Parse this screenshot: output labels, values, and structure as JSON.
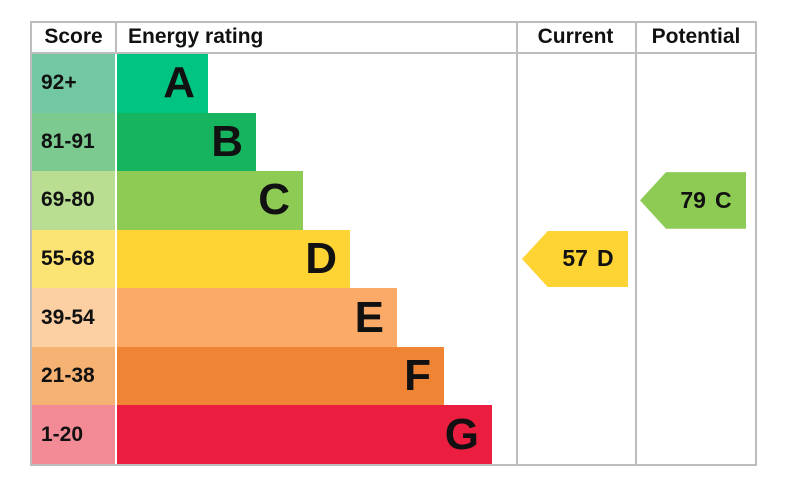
{
  "header": {
    "score": "Score",
    "energy_rating": "Energy rating",
    "current": "Current",
    "potential": "Potential"
  },
  "bands": [
    {
      "score_range": "92+",
      "letter": "A",
      "bar_color": "#00c482",
      "score_cell_color": "#73c8a3"
    },
    {
      "score_range": "81-91",
      "letter": "B",
      "bar_color": "#17b45f",
      "score_cell_color": "#7cca8f"
    },
    {
      "score_range": "69-80",
      "letter": "C",
      "bar_color": "#8dcb55",
      "score_cell_color": "#b9de91"
    },
    {
      "score_range": "55-68",
      "letter": "D",
      "bar_color": "#fed334",
      "score_cell_color": "#fbe374"
    },
    {
      "score_range": "39-54",
      "letter": "E",
      "bar_color": "#fcaa68",
      "score_cell_color": "#fdd0a3"
    },
    {
      "score_range": "21-38",
      "letter": "F",
      "bar_color": "#ee8434",
      "score_cell_color": "#f5b273"
    },
    {
      "score_range": "1-20",
      "letter": "G",
      "bar_color": "#eb1e3f",
      "score_cell_color": "#f28b95"
    }
  ],
  "current": {
    "value": "57",
    "letter": "D",
    "color": "#fed334"
  },
  "potential": {
    "value": "79",
    "letter": "C",
    "color": "#8dcb55"
  },
  "chart_data": {
    "type": "bar",
    "title": "Energy rating",
    "columns": [
      "Score",
      "Energy rating",
      "Current",
      "Potential"
    ],
    "categories": [
      "A",
      "B",
      "C",
      "D",
      "E",
      "F",
      "G"
    ],
    "score_ranges": [
      "92+",
      "81-91",
      "69-80",
      "55-68",
      "39-54",
      "21-38",
      "1-20"
    ],
    "band_colors": [
      "#00c482",
      "#17b45f",
      "#8dcb55",
      "#fed334",
      "#fcaa68",
      "#ee8434",
      "#eb1e3f"
    ],
    "bar_lengths_relative": [
      1,
      1.53,
      2.04,
      2.56,
      3.08,
      3.59,
      4.12
    ],
    "current": {
      "score": 57,
      "rating": "D"
    },
    "potential": {
      "score": 79,
      "rating": "C"
    },
    "legend_position": "none",
    "grid": false
  }
}
